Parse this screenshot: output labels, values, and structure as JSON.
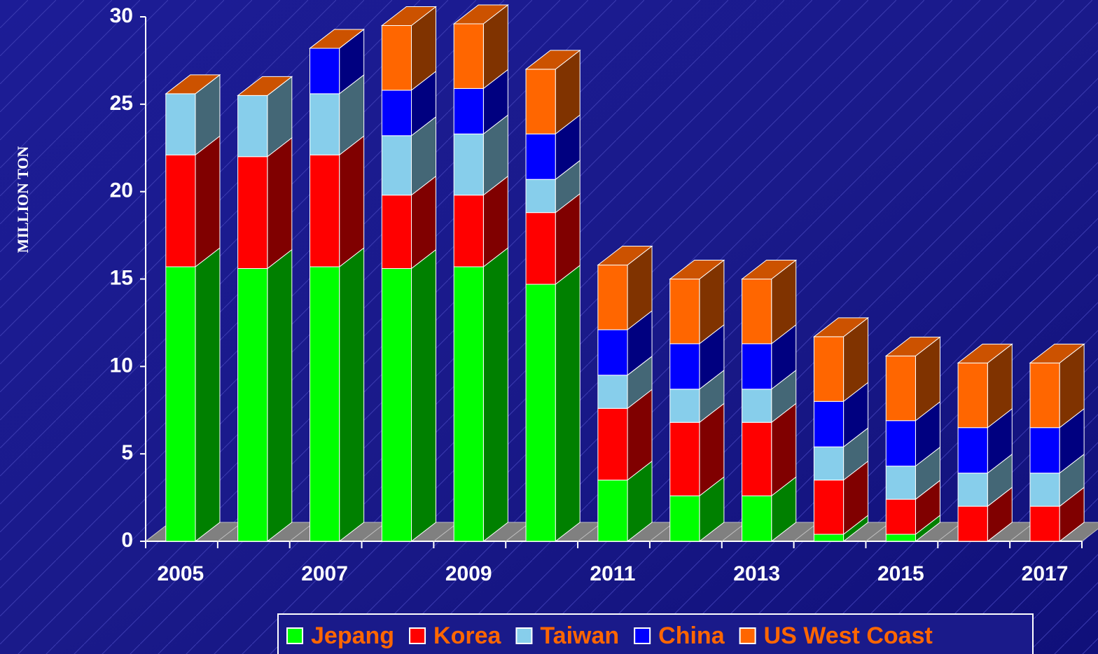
{
  "chart_data": {
    "type": "bar3d_stacked",
    "ylabel": "MILLION TON",
    "categories": [
      "2005",
      null,
      "2007",
      null,
      "2009",
      null,
      "2011",
      null,
      "2013",
      null,
      "2015",
      null,
      "2017"
    ],
    "series": [
      {
        "name": "Jepang",
        "color": "#00ff00",
        "values": [
          15.7,
          15.6,
          15.7,
          15.6,
          15.7,
          14.7,
          3.5,
          2.6,
          2.6,
          0.4,
          0.4,
          0,
          0
        ]
      },
      {
        "name": "Korea",
        "color": "#ff0000",
        "values": [
          6.4,
          6.4,
          6.4,
          4.2,
          4.1,
          4.1,
          4.1,
          4.2,
          4.2,
          3.1,
          2.0,
          2.0,
          2.0
        ]
      },
      {
        "name": "Taiwan",
        "color": "#87ceeb",
        "values": [
          3.5,
          3.5,
          3.5,
          3.4,
          3.5,
          1.9,
          1.9,
          1.9,
          1.9,
          1.9,
          1.9,
          1.9,
          1.9
        ]
      },
      {
        "name": "China",
        "color": "#0000ff",
        "values": [
          0,
          0,
          2.6,
          2.6,
          2.6,
          2.6,
          2.6,
          2.6,
          2.6,
          2.6,
          2.6,
          2.6,
          2.6
        ]
      },
      {
        "name": "US West Coast",
        "color": "#ff6600",
        "values": [
          0,
          0,
          0,
          3.7,
          3.7,
          3.7,
          3.7,
          3.7,
          3.7,
          3.7,
          3.7,
          3.7,
          3.7
        ]
      }
    ],
    "ylim": [
      0,
      30
    ],
    "yticks": [
      0,
      5,
      10,
      15,
      20,
      25,
      30
    ],
    "legend": "bottom"
  }
}
